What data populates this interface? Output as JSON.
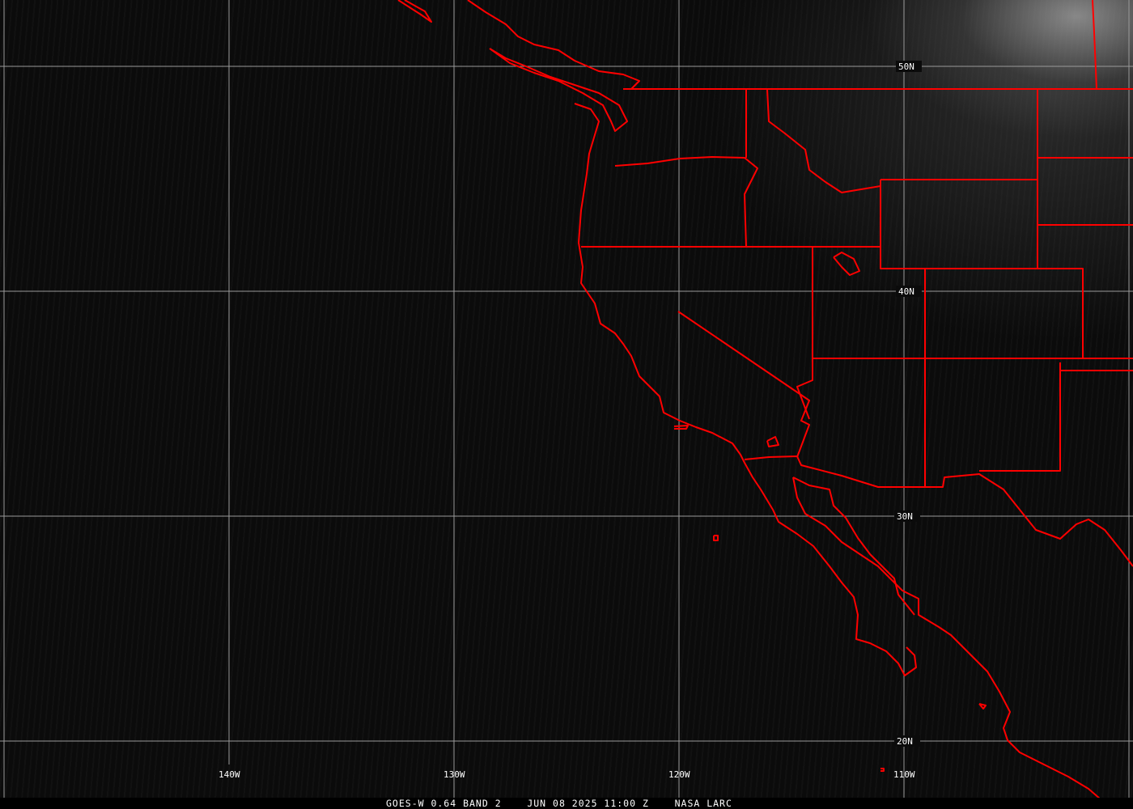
{
  "grid": {
    "latitude_labels": [
      "50N",
      "40N",
      "30N",
      "20N"
    ],
    "longitude_labels": [
      "140W",
      "130W",
      "120W",
      "110W"
    ]
  },
  "footer": {
    "product": "GOES-W 0.64 BAND 2",
    "datetime": "JUN 08 2025 11:00 Z",
    "source": "NASA LARC"
  },
  "colors": {
    "borders": "#ff0000",
    "grid": "#9a9a9a",
    "text": "#ffffff"
  }
}
